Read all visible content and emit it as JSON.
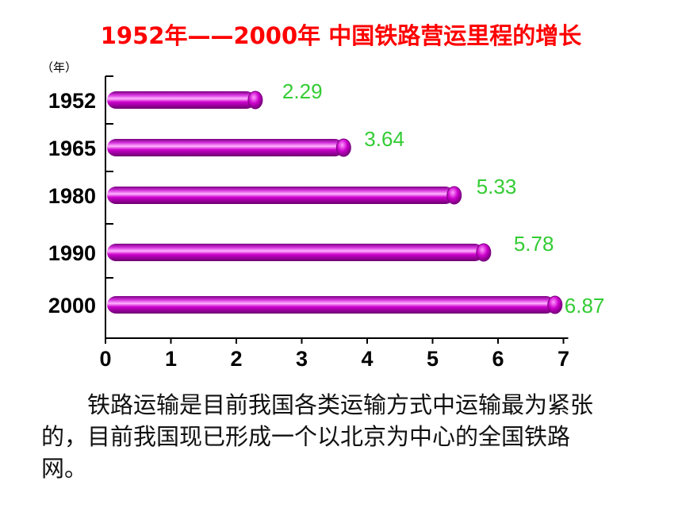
{
  "chart_data": {
    "type": "bar",
    "orientation": "horizontal",
    "title": "1952年——2000年  中国铁路营运里程的增长",
    "ylabel": "（年）",
    "xlabel": "",
    "categories": [
      "1952",
      "1965",
      "1980",
      "1990",
      "2000"
    ],
    "values": [
      2.29,
      3.64,
      5.33,
      5.78,
      6.87
    ],
    "value_labels": [
      "2.29",
      "3.64",
      "5.33",
      "5.78",
      "6.87"
    ],
    "xlim": [
      0,
      7
    ],
    "x_ticks": [
      "0",
      "1",
      "2",
      "3",
      "4",
      "5",
      "6",
      "7"
    ],
    "grid": false,
    "bar_color": "#cc00cc",
    "value_label_color": "#33cc33"
  },
  "caption": "铁路运输是目前我国各类运输方式中运输最为紧张的，目前我国现已形成一个以北京为中心的全国铁路网。"
}
